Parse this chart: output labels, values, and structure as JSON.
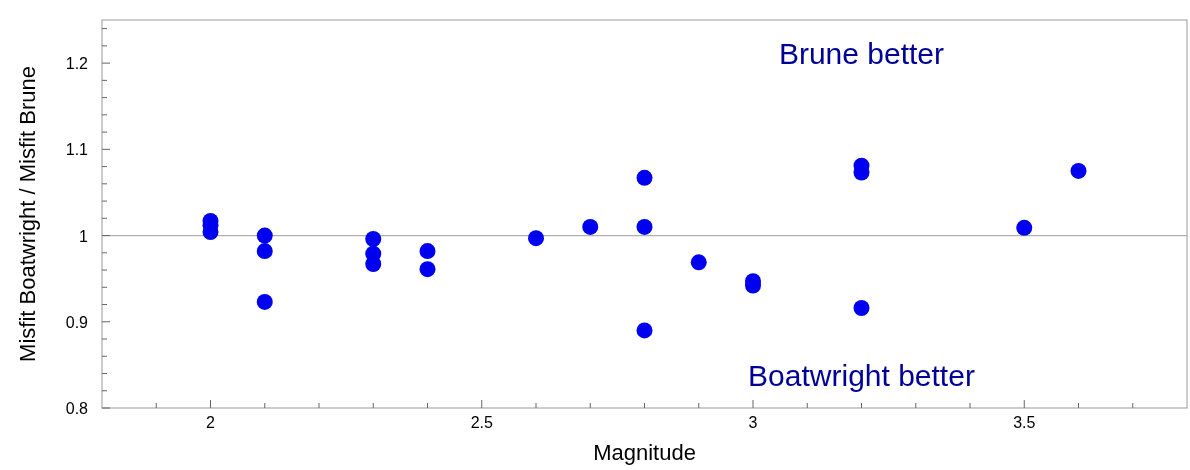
{
  "chart_data": {
    "type": "scatter",
    "xlabel": "Magnitude",
    "ylabel": "Misfit Boatwright / Misfit Brune",
    "annotations": [
      "Brune better",
      "Boatwright better"
    ],
    "x": [
      2,
      2,
      2,
      2.1,
      2.1,
      2.1,
      2.3,
      2.3,
      2.3,
      2.4,
      2.4,
      2.6,
      2.7,
      2.8,
      2.8,
      2.8,
      2.9,
      3,
      3,
      3.2,
      3.2,
      3.2,
      3.5,
      3.6
    ],
    "series": [
      {
        "color": "#0000f0",
        "values": [
          1.017,
          1.012,
          1.004,
          1.0,
          0.982,
          0.923,
          0.996,
          0.979,
          0.967,
          0.982,
          0.961,
          0.997,
          1.01,
          1.067,
          1.01,
          0.89,
          0.969,
          0.947,
          0.942,
          1.081,
          1.073,
          0.916,
          1.009,
          1.075
        ]
      }
    ],
    "marker": "circle",
    "grid": false,
    "xlim": [
      1.8,
      3.8
    ],
    "xticks": [
      {
        "value": 1.9,
        "label": null
      },
      2,
      {
        "value": 2.1,
        "label": null
      },
      {
        "value": 2.2,
        "label": null
      },
      {
        "value": 2.3,
        "label": null
      },
      {
        "value": 2.4,
        "label": null
      },
      2.5,
      {
        "value": 2.6,
        "label": null
      },
      {
        "value": 2.7,
        "label": null
      },
      {
        "value": 2.8,
        "label": null
      },
      {
        "value": 2.9,
        "label": null
      },
      3,
      {
        "value": 3.1,
        "label": null
      },
      {
        "value": 3.2,
        "label": null
      },
      {
        "value": 3.3,
        "label": null
      },
      {
        "value": 3.4,
        "label": null
      },
      3.5,
      {
        "value": 3.6,
        "label": null
      },
      {
        "value": 3.7,
        "label": null
      }
    ],
    "ylim": [
      0.8,
      1.25
    ],
    "yticks": [
      0.8,
      {
        "value": 0.82,
        "label": null
      },
      {
        "value": 0.84,
        "label": null
      },
      {
        "value": 0.86,
        "label": null
      },
      {
        "value": 0.88,
        "label": null
      },
      0.9,
      {
        "value": 0.92,
        "label": null
      },
      {
        "value": 0.94,
        "label": null
      },
      {
        "value": 0.96,
        "label": null
      },
      {
        "value": 0.98,
        "label": null
      },
      1,
      {
        "value": 1.02,
        "label": null
      },
      {
        "value": 1.04,
        "label": null
      },
      {
        "value": 1.06,
        "label": null
      },
      {
        "value": 1.08,
        "label": null
      },
      1.1,
      {
        "value": 1.12,
        "label": null
      },
      {
        "value": 1.14,
        "label": null
      },
      {
        "value": 1.16,
        "label": null
      },
      {
        "value": 1.18,
        "label": null
      },
      1.2,
      {
        "value": 1.22,
        "label": null
      },
      {
        "value": 1.24,
        "label": null
      }
    ],
    "ref_lines": [
      {
        "axis": "y",
        "value": 1,
        "color": "#b0b0b0"
      }
    ]
  }
}
